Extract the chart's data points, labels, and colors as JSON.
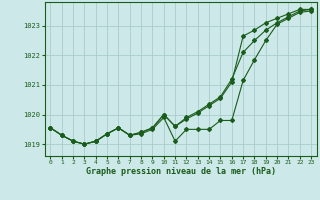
{
  "title": "Graphe pression niveau de la mer (hPa)",
  "background_color": "#cce8e8",
  "grid_color": "#aacccc",
  "line_color": "#1a5c1a",
  "text_color": "#1a5c1a",
  "xlim": [
    -0.5,
    23.5
  ],
  "ylim": [
    1018.6,
    1023.8
  ],
  "yticks": [
    1019,
    1020,
    1021,
    1022,
    1023
  ],
  "xticks": [
    0,
    1,
    2,
    3,
    4,
    5,
    6,
    7,
    8,
    9,
    10,
    11,
    12,
    13,
    14,
    15,
    16,
    17,
    18,
    19,
    20,
    21,
    22,
    23
  ],
  "line1_x": [
    0,
    1,
    2,
    3,
    4,
    5,
    6,
    7,
    8,
    9,
    10,
    11,
    12,
    13,
    14,
    15,
    16,
    17,
    18,
    19,
    20,
    21,
    22,
    23
  ],
  "line1_y": [
    1019.55,
    1019.3,
    1019.1,
    1019.0,
    1019.1,
    1019.35,
    1019.55,
    1019.3,
    1019.35,
    1019.5,
    1019.9,
    1019.1,
    1019.5,
    1019.5,
    1019.5,
    1019.8,
    1019.8,
    1021.15,
    1021.85,
    1022.5,
    1023.05,
    1023.25,
    1023.45,
    1023.5
  ],
  "line2_x": [
    0,
    1,
    2,
    3,
    4,
    5,
    6,
    7,
    8,
    9,
    10,
    11,
    12,
    13,
    14,
    15,
    16,
    17,
    18,
    19,
    20,
    21,
    22,
    23
  ],
  "line2_y": [
    1019.55,
    1019.3,
    1019.1,
    1019.0,
    1019.1,
    1019.35,
    1019.55,
    1019.3,
    1019.4,
    1019.55,
    1020.0,
    1019.6,
    1019.85,
    1020.05,
    1020.3,
    1020.55,
    1021.1,
    1022.65,
    1022.85,
    1023.1,
    1023.25,
    1023.4,
    1023.55,
    1023.55
  ],
  "line3_x": [
    0,
    1,
    2,
    3,
    4,
    5,
    6,
    7,
    8,
    9,
    10,
    11,
    12,
    13,
    14,
    15,
    16,
    17,
    18,
    19,
    20,
    21,
    22,
    23
  ],
  "line3_y": [
    1019.55,
    1019.3,
    1019.1,
    1019.0,
    1019.1,
    1019.35,
    1019.55,
    1019.3,
    1019.4,
    1019.55,
    1020.0,
    1019.6,
    1019.9,
    1020.1,
    1020.35,
    1020.6,
    1021.2,
    1022.1,
    1022.5,
    1022.85,
    1023.1,
    1023.3,
    1023.5,
    1023.55
  ]
}
